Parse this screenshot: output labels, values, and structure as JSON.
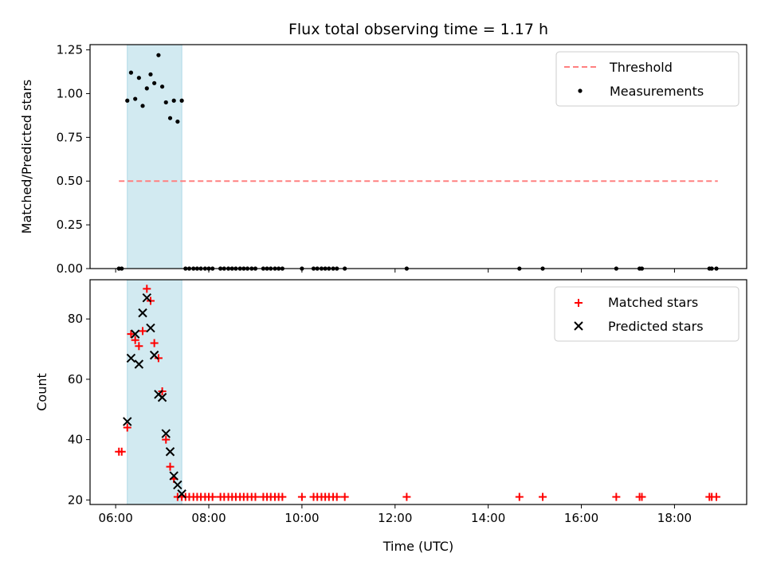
{
  "chart_data": [
    {
      "type": "scatter",
      "title": "Flux total observing time = 1.17 h",
      "xlabel": "",
      "ylabel": "Matched/Predicted stars",
      "xlim": [
        5.45,
        19.55
      ],
      "ylim": [
        0.0,
        1.28
      ],
      "yticks": [
        "0.00",
        "0.25",
        "0.50",
        "0.75",
        "1.00",
        "1.25"
      ],
      "yticks_values": [
        0,
        0.25,
        0.5,
        0.75,
        1.0,
        1.25
      ],
      "xticks_values": [
        6,
        8,
        10,
        12,
        14,
        16,
        18
      ],
      "xticklabels_visible": false,
      "grid": false,
      "legend_position": "top-right",
      "highlight_span": {
        "x0": 6.25,
        "x1": 7.42,
        "color": "#add8e6"
      },
      "threshold": {
        "name": "Threshold",
        "value": 0.5,
        "x0": 6.07,
        "x1": 18.93,
        "color": "#ff8080",
        "style": "dashed"
      },
      "series": [
        {
          "name": "Measurements",
          "marker": "dot",
          "color": "#000000",
          "x": [
            6.07,
            6.13,
            6.25,
            6.33,
            6.42,
            6.5,
            6.58,
            6.67,
            6.75,
            6.83,
            6.92,
            7.0,
            7.08,
            7.17,
            7.25,
            7.33,
            7.42,
            7.5,
            7.58,
            7.67,
            7.75,
            7.83,
            7.92,
            8.0,
            8.08,
            8.25,
            8.33,
            8.42,
            8.5,
            8.58,
            8.67,
            8.75,
            8.83,
            8.92,
            9.0,
            9.17,
            9.25,
            9.33,
            9.42,
            9.5,
            9.58,
            10.0,
            10.25,
            10.33,
            10.42,
            10.5,
            10.58,
            10.67,
            10.75,
            10.92,
            12.25,
            14.67,
            15.17,
            16.75,
            17.25,
            17.3,
            18.75,
            18.8,
            18.9
          ],
          "y": [
            0.0,
            0.0,
            0.96,
            1.12,
            0.97,
            1.09,
            0.93,
            1.03,
            1.11,
            1.06,
            1.22,
            1.04,
            0.95,
            0.86,
            0.96,
            0.84,
            0.96,
            0.0,
            0.0,
            0.0,
            0.0,
            0.0,
            0.0,
            0.0,
            0.0,
            0.0,
            0.0,
            0.0,
            0.0,
            0.0,
            0.0,
            0.0,
            0.0,
            0.0,
            0.0,
            0.0,
            0.0,
            0.0,
            0.0,
            0.0,
            0.0,
            0.0,
            0.0,
            0.0,
            0.0,
            0.0,
            0.0,
            0.0,
            0.0,
            0.0,
            0.0,
            0.0,
            0.0,
            0.0,
            0.0,
            0.0,
            0.0,
            0.0,
            0.0
          ]
        }
      ]
    },
    {
      "type": "scatter",
      "title": "",
      "xlabel": "Time (UTC)",
      "ylabel": "Count",
      "xlim": [
        5.45,
        19.55
      ],
      "ylim": [
        18.5,
        93
      ],
      "yticks": [
        "20",
        "40",
        "60",
        "80"
      ],
      "yticks_values": [
        20,
        40,
        60,
        80
      ],
      "xticks": [
        "06:00",
        "08:00",
        "10:00",
        "12:00",
        "14:00",
        "16:00",
        "18:00"
      ],
      "xticks_values": [
        6,
        8,
        10,
        12,
        14,
        16,
        18
      ],
      "grid": false,
      "legend_position": "top-right",
      "highlight_span": {
        "x0": 6.25,
        "x1": 7.42,
        "color": "#add8e6"
      },
      "series": [
        {
          "name": "Matched stars",
          "marker": "plus",
          "color": "#ff0000",
          "x": [
            6.07,
            6.13,
            6.25,
            6.33,
            6.42,
            6.5,
            6.58,
            6.67,
            6.75,
            6.83,
            6.92,
            7.0,
            7.08,
            7.17,
            7.25,
            7.33,
            7.42,
            7.5,
            7.58,
            7.67,
            7.75,
            7.83,
            7.92,
            8.0,
            8.08,
            8.25,
            8.33,
            8.42,
            8.5,
            8.58,
            8.67,
            8.75,
            8.83,
            8.92,
            9.0,
            9.17,
            9.25,
            9.33,
            9.42,
            9.5,
            9.58,
            10.0,
            10.25,
            10.33,
            10.42,
            10.5,
            10.58,
            10.67,
            10.75,
            10.92,
            12.25,
            14.67,
            15.17,
            16.75,
            17.25,
            17.3,
            18.75,
            18.8,
            18.9
          ],
          "y": [
            36,
            36,
            44,
            75,
            73,
            71,
            76,
            90,
            86,
            72,
            67,
            56,
            40,
            31,
            27,
            21,
            21,
            21,
            21,
            21,
            21,
            21,
            21,
            21,
            21,
            21,
            21,
            21,
            21,
            21,
            21,
            21,
            21,
            21,
            21,
            21,
            21,
            21,
            21,
            21,
            21,
            21,
            21,
            21,
            21,
            21,
            21,
            21,
            21,
            21,
            21,
            21,
            21,
            21,
            21,
            21,
            21,
            21,
            21
          ]
        },
        {
          "name": "Predicted stars",
          "marker": "x",
          "color": "#000000",
          "x": [
            6.25,
            6.33,
            6.42,
            6.5,
            6.58,
            6.67,
            6.75,
            6.83,
            6.92,
            7.0,
            7.08,
            7.17,
            7.25,
            7.33,
            7.42
          ],
          "y": [
            46,
            67,
            75,
            65,
            82,
            87,
            77,
            68,
            55,
            54,
            42,
            36,
            28,
            25,
            22
          ]
        }
      ]
    }
  ]
}
